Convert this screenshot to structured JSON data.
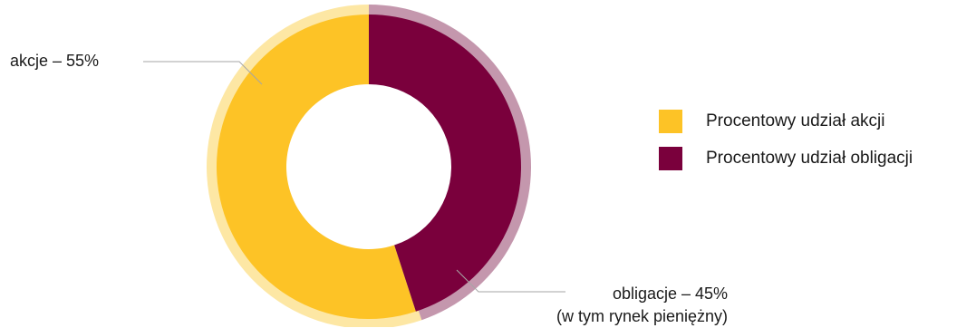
{
  "chart_data": {
    "type": "pie",
    "variant": "donut",
    "title": "",
    "slices": [
      {
        "name": "Procentowy udział akcji",
        "value": 55,
        "color": "#fdc326",
        "halo": "#fde7a4",
        "label_lines": [
          "akcje – 55%"
        ]
      },
      {
        "name": "Procentowy udział obligacji",
        "value": 45,
        "color": "#7a003c",
        "halo": "#c497ad",
        "label_lines": [
          "obligacje – 45%",
          "(w tym rynek pieniężny)"
        ]
      }
    ],
    "legend": {
      "position": "right",
      "items": [
        {
          "label": "Procentowy udział akcji",
          "color": "#fdc326"
        },
        {
          "label": "Procentowy udział obligacji",
          "color": "#7a003c"
        }
      ]
    },
    "leader_line_color": "#a6a6a6"
  }
}
